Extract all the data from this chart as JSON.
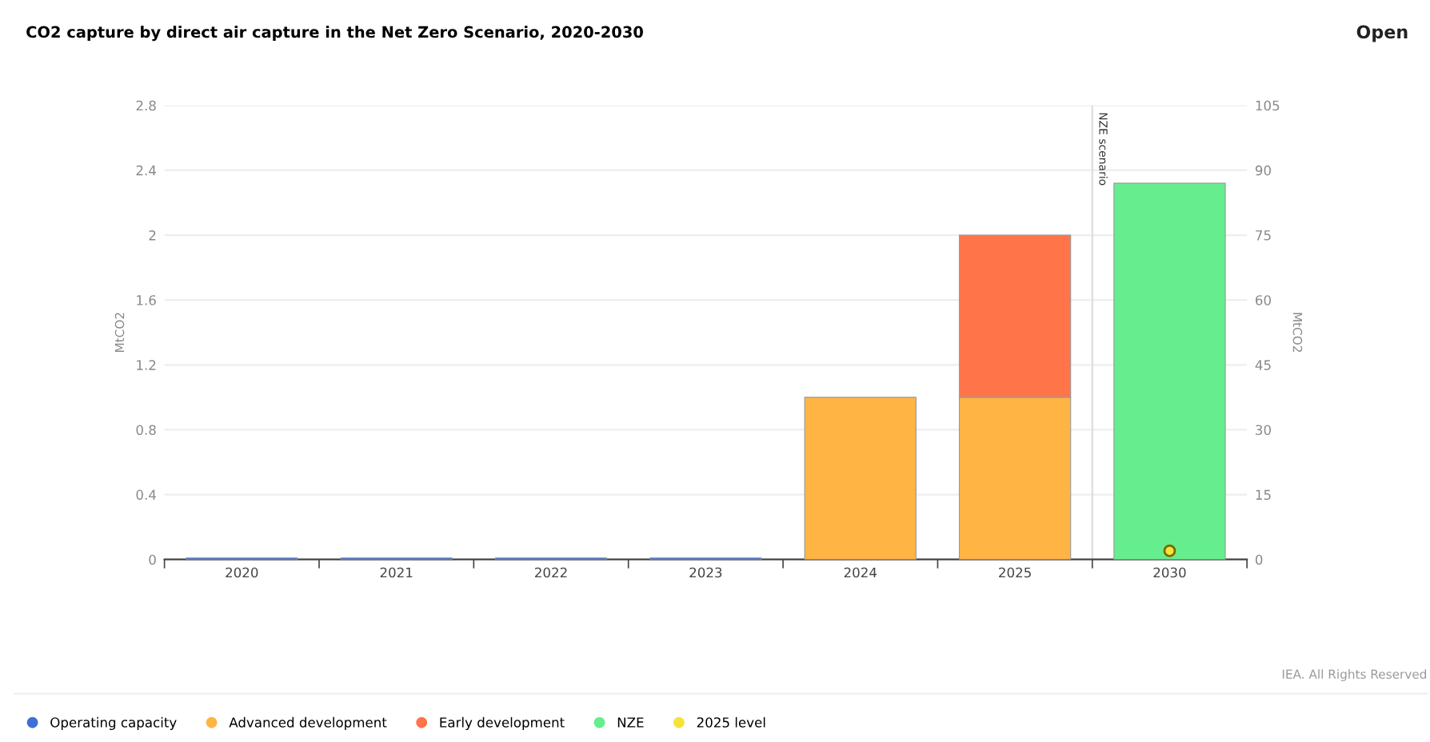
{
  "chart_data": {
    "type": "bar",
    "title": "CO2 capture by direct air capture in the Net Zero Scenario, 2020-2030",
    "categories": [
      "2020",
      "2021",
      "2022",
      "2023",
      "2024",
      "2025",
      "2030"
    ],
    "stacked": true,
    "series": [
      {
        "name": "Operating capacity",
        "color": "#3f6fd6",
        "values": [
          0.01,
          0.01,
          0.01,
          0.01,
          null,
          null,
          null
        ]
      },
      {
        "name": "Advanced development",
        "color": "#ffb444",
        "values": [
          null,
          null,
          null,
          null,
          1.0,
          1.0,
          null
        ]
      },
      {
        "name": "Early development",
        "color": "#ff7448",
        "values": [
          null,
          null,
          null,
          null,
          null,
          1.0,
          null
        ]
      },
      {
        "name": "NZE",
        "color": "#66ee8e",
        "axis": "y2",
        "values": [
          null,
          null,
          null,
          null,
          null,
          null,
          87
        ]
      },
      {
        "name": "2025 level",
        "color": "#f5e33a",
        "type": "scatter",
        "axis": "y2",
        "marker": "circle",
        "values": [
          null,
          null,
          null,
          null,
          null,
          null,
          2
        ]
      }
    ],
    "ylabel": "MtCO2",
    "y2label": "MtCO2",
    "ylim": [
      0,
      2.8
    ],
    "yticks": [
      0,
      0.4,
      0.8,
      1.2,
      1.6,
      2,
      2.4,
      2.8
    ],
    "y2lim": [
      0,
      105
    ],
    "y2ticks": [
      0,
      15,
      30,
      45,
      60,
      75,
      90,
      105
    ],
    "grid": "y",
    "legend": "bottom",
    "ref_lines": [
      {
        "axis": "x",
        "value": "2030",
        "label": "NZE scenario",
        "color": "#dddddd"
      }
    ],
    "annotations": [
      "Open",
      "IEA. All Rights Reserved"
    ]
  }
}
